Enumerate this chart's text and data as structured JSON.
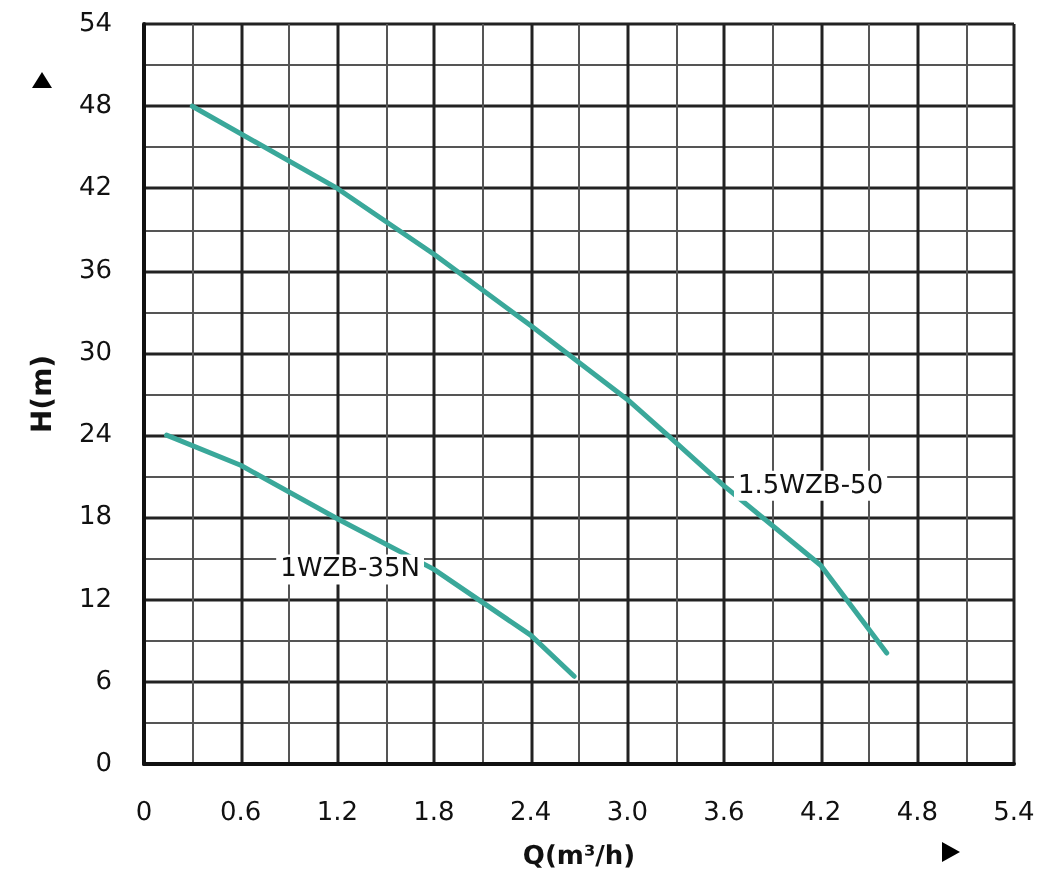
{
  "chart_data": {
    "type": "line",
    "xlabel": "Q(m³/h)",
    "ylabel": "H(m)",
    "xlim": [
      0,
      5.4
    ],
    "xticks": [
      0,
      0.6,
      1.2,
      1.8,
      2.4,
      {
        "value": 3,
        "label": "3.0"
      },
      3.6,
      4.2,
      4.8,
      5.4
    ],
    "ylim": [
      0,
      54
    ],
    "yticks": [
      0,
      6,
      12,
      18,
      24,
      30,
      36,
      42,
      48,
      54
    ],
    "grid": true,
    "marker": "none",
    "line_style": "solid",
    "legend": false,
    "series": [
      {
        "name": "1.5WZB-50",
        "color": "#3aa89a",
        "x": [
          0.3,
          1.2,
          1.8,
          2.4,
          3.0,
          3.25,
          3.6,
          4.2,
          4.61
        ],
        "values": [
          48,
          42,
          37.2,
          32,
          26.6,
          24,
          20.3,
          14.5,
          8.1
        ]
      },
      {
        "name": "1WZB-35N",
        "color": "#3aa89a",
        "x": [
          0.14,
          0.6,
          1.2,
          1.8,
          2.4,
          2.67
        ],
        "values": [
          24,
          21.8,
          17.9,
          14.2,
          9.4,
          6.4
        ]
      }
    ]
  }
}
